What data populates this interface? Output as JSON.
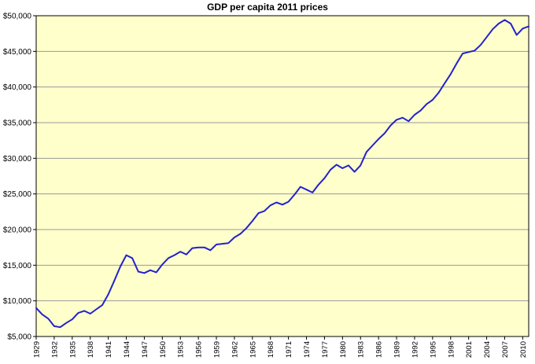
{
  "chart_data": {
    "type": "line",
    "title": "GDP per capita 2011 prices",
    "xlabel": "",
    "ylabel": "",
    "legend": "none",
    "grid": true,
    "ylim": [
      5000,
      50000
    ],
    "ytick_step": 5000,
    "yticks": [
      5000,
      10000,
      15000,
      20000,
      25000,
      30000,
      35000,
      40000,
      45000,
      50000
    ],
    "ytick_labels": [
      "$5,000",
      "$10,000",
      "$15,000",
      "$20,000",
      "$25,000",
      "$30,000",
      "$35,000",
      "$40,000",
      "$45,000",
      "$50,000"
    ],
    "xticks": [
      1929,
      1932,
      1935,
      1938,
      1941,
      1944,
      1947,
      1950,
      1953,
      1956,
      1959,
      1962,
      1965,
      1968,
      1971,
      1974,
      1977,
      1980,
      1983,
      1986,
      1989,
      1992,
      1995,
      1998,
      2001,
      2004,
      2007,
      2010
    ],
    "x": [
      1929,
      1930,
      1931,
      1932,
      1933,
      1934,
      1935,
      1936,
      1937,
      1938,
      1939,
      1940,
      1941,
      1942,
      1943,
      1944,
      1945,
      1946,
      1947,
      1948,
      1949,
      1950,
      1951,
      1952,
      1953,
      1954,
      1955,
      1956,
      1957,
      1958,
      1959,
      1960,
      1961,
      1962,
      1963,
      1964,
      1965,
      1966,
      1967,
      1968,
      1969,
      1970,
      1971,
      1972,
      1973,
      1974,
      1975,
      1976,
      1977,
      1978,
      1979,
      1980,
      1981,
      1982,
      1983,
      1984,
      1985,
      1986,
      1987,
      1988,
      1989,
      1990,
      1991,
      1992,
      1993,
      1994,
      1995,
      1996,
      1997,
      1998,
      1999,
      2000,
      2001,
      2002,
      2003,
      2004,
      2005,
      2006,
      2007,
      2008,
      2009,
      2010,
      2011
    ],
    "values": [
      9000,
      8100,
      7500,
      6450,
      6300,
      6900,
      7400,
      8300,
      8600,
      8200,
      8800,
      9400,
      10900,
      12800,
      14800,
      16400,
      16000,
      14100,
      13900,
      14300,
      14000,
      15100,
      16000,
      16400,
      16900,
      16500,
      17400,
      17500,
      17500,
      17100,
      17900,
      18000,
      18100,
      18900,
      19400,
      20200,
      21200,
      22300,
      22600,
      23400,
      23800,
      23500,
      23900,
      24900,
      26000,
      25600,
      25200,
      26300,
      27200,
      28400,
      29100,
      28600,
      29000,
      28100,
      29000,
      30900,
      31800,
      32700,
      33500,
      34600,
      35400,
      35700,
      35200,
      36100,
      36700,
      37600,
      38200,
      39200,
      40500,
      41800,
      43300,
      44700,
      44900,
      45100,
      45900,
      47000,
      48100,
      48900,
      49400,
      48900,
      47300,
      48200,
      48500
    ],
    "colors": {
      "line": "#2222CC",
      "plot_bg": "#FFFFCC",
      "grid": "#999999",
      "axis": "#000000",
      "outer_bg": "#FFFFFF",
      "title": "#000000"
    }
  }
}
